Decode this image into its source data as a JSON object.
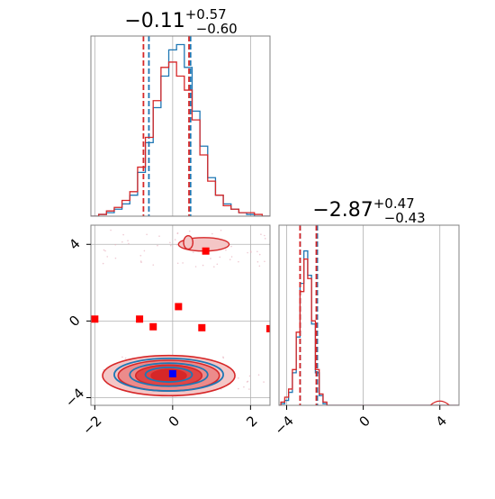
{
  "colors": {
    "blue": "#1f77b4",
    "red": "#d62728",
    "marker_red": "#ff0000",
    "marker_blue": "#0000ff",
    "grid": "#b0b0b0",
    "frame": "#808080"
  },
  "chart_data": [
    {
      "type": "histogram",
      "panel": "top-left",
      "title": {
        "median": "−0.11",
        "upper": "+0.57",
        "lower": "−0.60"
      },
      "x": [
        -2.0,
        -1.8,
        -1.6,
        -1.4,
        -1.2,
        -1.0,
        -0.8,
        -0.6,
        -0.4,
        -0.2,
        0.0,
        0.2,
        0.4,
        0.6,
        0.8,
        1.0,
        1.2,
        1.4,
        1.6,
        1.8,
        2.0,
        2.2,
        2.4
      ],
      "xlim": [
        -2.1,
        2.5
      ],
      "grid": true,
      "series": [
        {
          "color": "blue",
          "values": [
            0,
            1,
            2,
            4,
            7,
            12,
            25,
            42,
            62,
            80,
            95,
            98,
            85,
            60,
            40,
            22,
            12,
            7,
            4,
            2,
            1,
            0,
            0
          ],
          "quantiles": [
            -0.61,
            0.46
          ]
        },
        {
          "color": "red",
          "values": [
            0,
            1,
            3,
            5,
            9,
            14,
            28,
            45,
            66,
            85,
            88,
            80,
            72,
            55,
            35,
            20,
            12,
            6,
            4,
            2,
            2,
            1,
            0
          ],
          "quantiles": [
            -0.75,
            0.42
          ]
        }
      ]
    },
    {
      "type": "contour",
      "panel": "bottom-left",
      "xlim": [
        -2.1,
        2.5
      ],
      "ylim": [
        -4.4,
        5.0
      ],
      "xticks": [
        "−2",
        "0",
        "2"
      ],
      "yticks": [
        "−4",
        "0",
        "4"
      ],
      "grid": true,
      "blue_center": [
        -0.1,
        -2.8
      ],
      "red_center": [
        -0.1,
        -2.85
      ],
      "secondary_blob": {
        "center": [
          0.8,
          4.0
        ],
        "color": "red"
      },
      "markers_red": [
        [
          -2.0,
          0.1
        ],
        [
          -0.85,
          0.1
        ],
        [
          -0.5,
          -0.3
        ],
        [
          0.15,
          0.75
        ],
        [
          0.75,
          -0.35
        ],
        [
          2.5,
          -0.4
        ],
        [
          0.85,
          3.65
        ]
      ],
      "markers_blue": [
        [
          0.0,
          -2.75
        ]
      ]
    },
    {
      "type": "histogram",
      "panel": "bottom-right",
      "title": {
        "median": "−2.87",
        "upper": "+0.47",
        "lower": "−0.43"
      },
      "x": [
        -4.4,
        -4.2,
        -4.0,
        -3.8,
        -3.6,
        -3.4,
        -3.2,
        -3.0,
        -2.8,
        -2.6,
        -2.4,
        -2.2,
        -2.0,
        -1.8
      ],
      "xlim": [
        -4.4,
        5.0
      ],
      "xticks": [
        "−4",
        "0",
        "4"
      ],
      "grid": true,
      "series": [
        {
          "color": "blue",
          "values": [
            0,
            1,
            3,
            8,
            20,
            42,
            75,
            95,
            80,
            50,
            20,
            6,
            1,
            0
          ],
          "quantiles": [
            -3.3,
            -2.4
          ]
        },
        {
          "color": "red",
          "values": [
            0,
            2,
            5,
            10,
            22,
            45,
            70,
            90,
            78,
            52,
            22,
            7,
            2,
            0
          ],
          "quantiles": [
            -3.3,
            -2.45
          ]
        }
      ],
      "tail_bump": {
        "x": [
          3.5,
          4.5
        ],
        "peak": 3
      }
    }
  ]
}
